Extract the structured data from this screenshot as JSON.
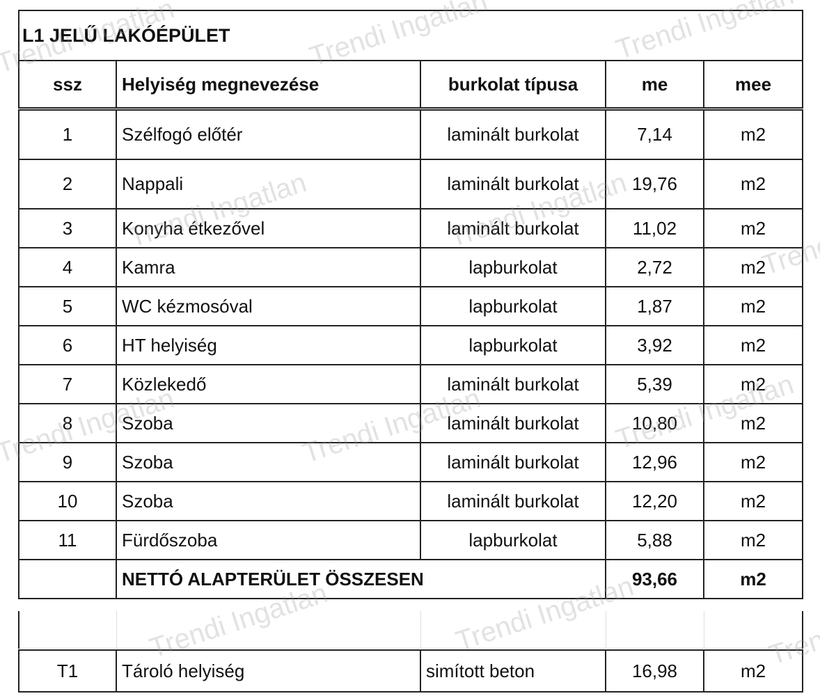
{
  "title": "L1 JELŰ LAKÓÉPÜLET",
  "headers": {
    "ssz": "ssz",
    "name": "Helyiség megnevezése",
    "type": "burkolat típusa",
    "me": "me",
    "mee": "mee"
  },
  "rows": [
    {
      "ssz": "1",
      "name": "Szélfogó előtér",
      "type": "laminált burkolat",
      "me": "7,14",
      "mee": "m2"
    },
    {
      "ssz": "2",
      "name": "Nappali",
      "type": "laminált burkolat",
      "me": "19,76",
      "mee": "m2"
    },
    {
      "ssz": "3",
      "name": "Konyha étkezővel",
      "type": "laminált burkolat",
      "me": "11,02",
      "mee": "m2"
    },
    {
      "ssz": "4",
      "name": "Kamra",
      "type": "lapburkolat",
      "me": "2,72",
      "mee": "m2"
    },
    {
      "ssz": "5",
      "name": "WC kézmosóval",
      "type": "lapburkolat",
      "me": "1,87",
      "mee": "m2"
    },
    {
      "ssz": "6",
      "name": "HT helyiség",
      "type": "lapburkolat",
      "me": "3,92",
      "mee": "m2"
    },
    {
      "ssz": "7",
      "name": "Közlekedő",
      "type": "laminált burkolat",
      "me": "5,39",
      "mee": "m2"
    },
    {
      "ssz": "8",
      "name": "Szoba",
      "type": "laminált burkolat",
      "me": "10,80",
      "mee": "m2"
    },
    {
      "ssz": "9",
      "name": "Szoba",
      "type": "laminált burkolat",
      "me": "12,96",
      "mee": "m2"
    },
    {
      "ssz": "10",
      "name": "Szoba",
      "type": "laminált burkolat",
      "me": "12,20",
      "mee": "m2"
    },
    {
      "ssz": "11",
      "name": "Fürdőszoba",
      "type": "lapburkolat",
      "me": "5,88",
      "mee": "m2"
    }
  ],
  "total": {
    "label": "NETTÓ ALAPTERÜLET ÖSSZESEN",
    "me": "93,66",
    "mee": "m2"
  },
  "extra": {
    "ssz": "T1",
    "name": "Tároló helyiség",
    "type": "simított beton",
    "me": "16,98",
    "mee": "m2"
  },
  "watermark": "Trendi Ingatlan"
}
